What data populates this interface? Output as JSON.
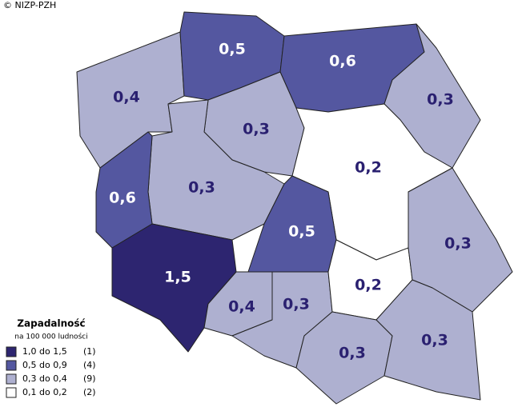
{
  "copyright": "© NIZP-PZH",
  "legend": {
    "title": "Zapadalność",
    "subtitle": "na 100 000 ludności",
    "items": [
      {
        "label": "1,0 do 1,5",
        "count": "(1)",
        "color": "#2d2570"
      },
      {
        "label": "0,5 do 0,9",
        "count": "(4)",
        "color": "#5457a0"
      },
      {
        "label": "0,3 do 0,4",
        "count": "(9)",
        "color": "#aeb0d0"
      },
      {
        "label": "0,1 do 0,2",
        "count": "(2)",
        "color": "#ffffff"
      }
    ]
  },
  "regions": [
    {
      "label": "0,4",
      "color": "#aeb0d0"
    },
    {
      "label": "0,5",
      "color": "#5457a0"
    },
    {
      "label": "0,6",
      "color": "#5457a0"
    },
    {
      "label": "0,3",
      "color": "#aeb0d0"
    },
    {
      "label": "0,3",
      "color": "#aeb0d0"
    },
    {
      "label": "0,2",
      "color": "#ffffff"
    },
    {
      "label": "0,3",
      "color": "#aeb0d0"
    },
    {
      "label": "0,6",
      "color": "#5457a0"
    },
    {
      "label": "1,5",
      "color": "#2d2570"
    },
    {
      "label": "0,5",
      "color": "#5457a0"
    },
    {
      "label": "0,4",
      "color": "#aeb0d0"
    },
    {
      "label": "0,3",
      "color": "#aeb0d0"
    },
    {
      "label": "0,2",
      "color": "#ffffff"
    },
    {
      "label": "0,3",
      "color": "#aeb0d0"
    },
    {
      "label": "0,3",
      "color": "#aeb0d0"
    },
    {
      "label": "0,3",
      "color": "#aeb0d0"
    }
  ]
}
